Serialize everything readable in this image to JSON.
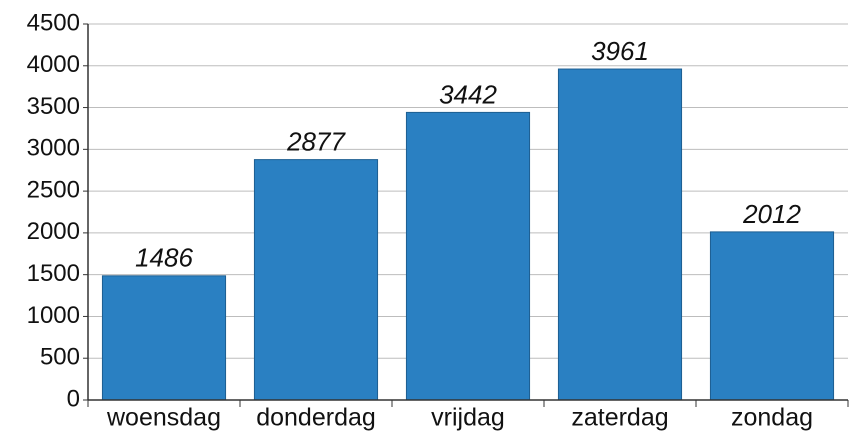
{
  "chart_data": {
    "type": "bar",
    "categories": [
      "woensdag",
      "donderdag",
      "vrijdag",
      "zaterdag",
      "zondag"
    ],
    "values": [
      1486,
      2877,
      3442,
      3961,
      2012
    ],
    "color": "#2a80c2",
    "ylim": [
      0,
      4500
    ],
    "yticks": [
      0,
      500,
      1000,
      1500,
      2000,
      2500,
      3000,
      3500,
      4000,
      4500
    ],
    "grid": true
  }
}
